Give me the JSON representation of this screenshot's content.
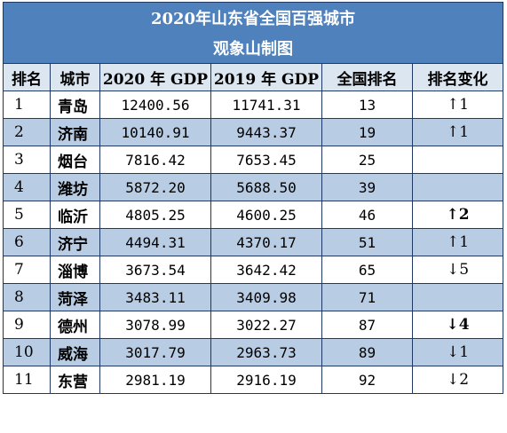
{
  "title_line1": "2020年山东省全国百强城市",
  "title_line2": "观象山制图",
  "headers": [
    "排名",
    "城市",
    "2020 年 GDP",
    "2019 年 GDP",
    "全国排名",
    "排名变化"
  ],
  "rows": [
    {
      "rank": "1",
      "city": "青岛",
      "gdp2020": "12400.56",
      "gdp2019": "11741.31",
      "national": "13",
      "change": "↑1",
      "change_bold": false
    },
    {
      "rank": "2",
      "city": "济南",
      "gdp2020": "10140.91",
      "gdp2019": "9443.37",
      "national": "19",
      "change": "↑1",
      "change_bold": false
    },
    {
      "rank": "3",
      "city": "烟台",
      "gdp2020": "7816.42",
      "gdp2019": "7653.45",
      "national": "25",
      "change": "",
      "change_bold": false
    },
    {
      "rank": "4",
      "city": "潍坊",
      "gdp2020": "5872.20",
      "gdp2019": "5688.50",
      "national": "39",
      "change": "",
      "change_bold": false
    },
    {
      "rank": "5",
      "city": "临沂",
      "gdp2020": "4805.25",
      "gdp2019": "4600.25",
      "national": "46",
      "change": "↑2",
      "change_bold": true
    },
    {
      "rank": "6",
      "city": "济宁",
      "gdp2020": "4494.31",
      "gdp2019": "4370.17",
      "national": "51",
      "change": "↑1",
      "change_bold": false
    },
    {
      "rank": "7",
      "city": "淄博",
      "gdp2020": "3673.54",
      "gdp2019": "3642.42",
      "national": "65",
      "change": "↓5",
      "change_bold": false
    },
    {
      "rank": "8",
      "city": "菏泽",
      "gdp2020": "3483.11",
      "gdp2019": "3409.98",
      "national": "71",
      "change": "",
      "change_bold": false
    },
    {
      "rank": "9",
      "city": "德州",
      "gdp2020": "3078.99",
      "gdp2019": "3022.27",
      "national": "87",
      "change": "↓4",
      "change_bold": true
    },
    {
      "rank": "10",
      "city": "威海",
      "gdp2020": "3017.79",
      "gdp2019": "2963.73",
      "national": "89",
      "change": "↓1",
      "change_bold": false
    },
    {
      "rank": "11",
      "city": "东营",
      "gdp2020": "2981.19",
      "gdp2019": "2916.19",
      "national": "92",
      "change": "↓2",
      "change_bold": false
    }
  ],
  "colors": {
    "title_bg": "#4f81bd",
    "header_bg": "#dce6f1",
    "alt_row_bg": "#b8cce4",
    "border": "#1f3864"
  }
}
